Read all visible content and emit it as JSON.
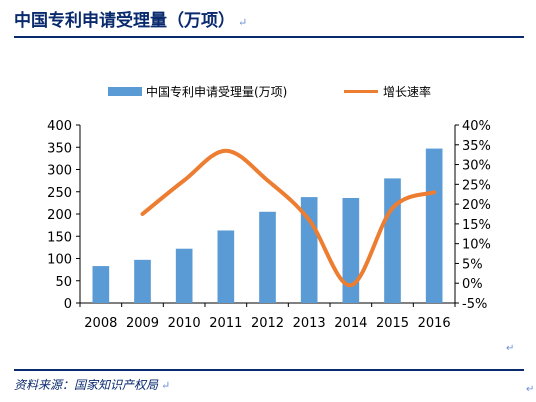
{
  "header": {
    "title": "中国专利申请受理量（万项）",
    "mark": "↵"
  },
  "source": {
    "text": "资料来源：国家知识产权局",
    "mark": "↵"
  },
  "stray_mark": "↵",
  "chart_data": {
    "type": "bar",
    "categories": [
      "2008",
      "2009",
      "2010",
      "2011",
      "2012",
      "2013",
      "2014",
      "2015",
      "2016"
    ],
    "series": [
      {
        "name": "中国专利申请受理量(万项)",
        "type": "bar",
        "axis": "left",
        "color": "#5b9bd5",
        "values": [
          83,
          97,
          122,
          163,
          205,
          238,
          236,
          280,
          347
        ]
      },
      {
        "name": "增长速率",
        "type": "line",
        "axis": "right",
        "color": "#ed7d31",
        "values": [
          null,
          17.5,
          26,
          33.5,
          26,
          16,
          -0.5,
          19,
          23
        ]
      }
    ],
    "y_left": {
      "min": 0,
      "max": 400,
      "ticks": [
        "0",
        "50",
        "100",
        "150",
        "200",
        "250",
        "300",
        "350",
        "400"
      ]
    },
    "y_right": {
      "min": -5,
      "max": 40,
      "ticks": [
        "-5%",
        "0%",
        "5%",
        "10%",
        "15%",
        "20%",
        "25%",
        "30%",
        "35%",
        "40%"
      ]
    },
    "grid": false,
    "legend_position": "top"
  }
}
